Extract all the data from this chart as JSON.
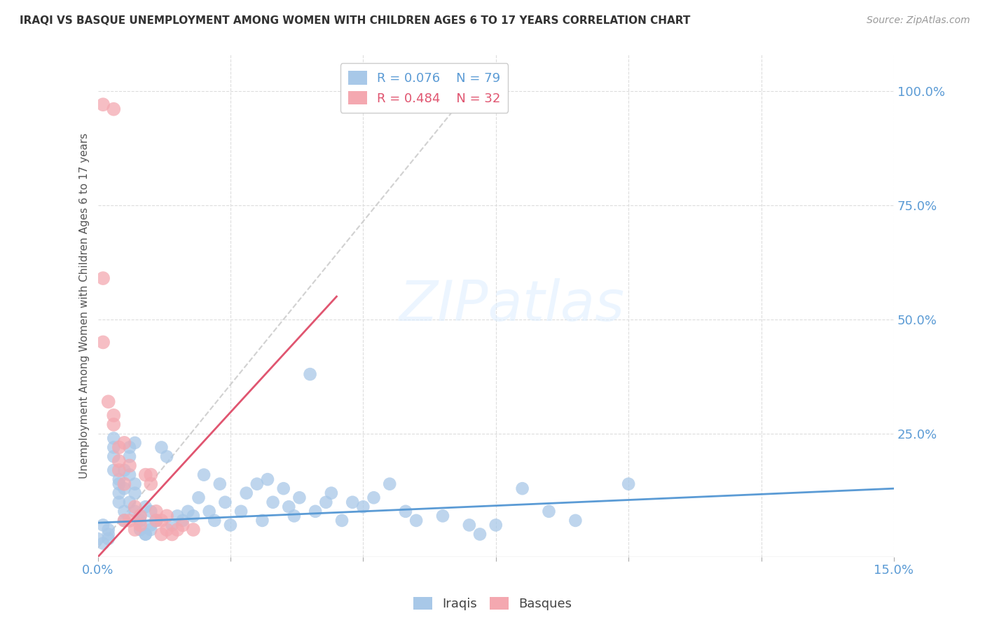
{
  "title": "IRAQI VS BASQUE UNEMPLOYMENT AMONG WOMEN WITH CHILDREN AGES 6 TO 17 YEARS CORRELATION CHART",
  "source": "Source: ZipAtlas.com",
  "ylabel": "Unemployment Among Women with Children Ages 6 to 17 years",
  "xlim": [
    0.0,
    0.15
  ],
  "ylim": [
    -0.02,
    1.08
  ],
  "watermark_text": "ZIPatlas",
  "legend_r1": "R = 0.076",
  "legend_n1": "N = 79",
  "legend_r2": "R = 0.484",
  "legend_n2": "N = 32",
  "iraqi_color": "#a8c8e8",
  "basque_color": "#f4a8b0",
  "trendline1_color": "#5b9bd5",
  "trendline2_color": "#e05570",
  "diag_color": "#cccccc",
  "background_color": "#ffffff",
  "grid_color": "#dddddd",
  "text_color": "#5b9bd5",
  "title_color": "#333333",
  "source_color": "#999999",
  "ylabel_color": "#555555",
  "legend_text1_color": "#5b9bd5",
  "legend_text2_color": "#e05570",
  "iraqi_points": [
    [
      0.0,
      0.02
    ],
    [
      0.001,
      0.01
    ],
    [
      0.001,
      0.05
    ],
    [
      0.002,
      0.03
    ],
    [
      0.002,
      0.04
    ],
    [
      0.002,
      0.02
    ],
    [
      0.003,
      0.22
    ],
    [
      0.003,
      0.2
    ],
    [
      0.003,
      0.24
    ],
    [
      0.003,
      0.17
    ],
    [
      0.004,
      0.12
    ],
    [
      0.004,
      0.15
    ],
    [
      0.004,
      0.14
    ],
    [
      0.004,
      0.1
    ],
    [
      0.005,
      0.13
    ],
    [
      0.005,
      0.08
    ],
    [
      0.005,
      0.06
    ],
    [
      0.005,
      0.17
    ],
    [
      0.006,
      0.16
    ],
    [
      0.006,
      0.22
    ],
    [
      0.006,
      0.2
    ],
    [
      0.006,
      0.1
    ],
    [
      0.007,
      0.08
    ],
    [
      0.007,
      0.23
    ],
    [
      0.007,
      0.14
    ],
    [
      0.007,
      0.12
    ],
    [
      0.008,
      0.06
    ],
    [
      0.008,
      0.04
    ],
    [
      0.008,
      0.07
    ],
    [
      0.009,
      0.03
    ],
    [
      0.009,
      0.09
    ],
    [
      0.009,
      0.03
    ],
    [
      0.01,
      0.05
    ],
    [
      0.01,
      0.04
    ],
    [
      0.01,
      0.08
    ],
    [
      0.011,
      0.06
    ],
    [
      0.012,
      0.22
    ],
    [
      0.013,
      0.2
    ],
    [
      0.014,
      0.05
    ],
    [
      0.015,
      0.07
    ],
    [
      0.016,
      0.06
    ],
    [
      0.017,
      0.08
    ],
    [
      0.018,
      0.07
    ],
    [
      0.019,
      0.11
    ],
    [
      0.02,
      0.16
    ],
    [
      0.021,
      0.08
    ],
    [
      0.022,
      0.06
    ],
    [
      0.023,
      0.14
    ],
    [
      0.024,
      0.1
    ],
    [
      0.025,
      0.05
    ],
    [
      0.027,
      0.08
    ],
    [
      0.028,
      0.12
    ],
    [
      0.03,
      0.14
    ],
    [
      0.031,
      0.06
    ],
    [
      0.032,
      0.15
    ],
    [
      0.033,
      0.1
    ],
    [
      0.035,
      0.13
    ],
    [
      0.036,
      0.09
    ],
    [
      0.037,
      0.07
    ],
    [
      0.038,
      0.11
    ],
    [
      0.04,
      0.38
    ],
    [
      0.041,
      0.08
    ],
    [
      0.043,
      0.1
    ],
    [
      0.044,
      0.12
    ],
    [
      0.046,
      0.06
    ],
    [
      0.048,
      0.1
    ],
    [
      0.05,
      0.09
    ],
    [
      0.052,
      0.11
    ],
    [
      0.055,
      0.14
    ],
    [
      0.058,
      0.08
    ],
    [
      0.06,
      0.06
    ],
    [
      0.065,
      0.07
    ],
    [
      0.07,
      0.05
    ],
    [
      0.072,
      0.03
    ],
    [
      0.075,
      0.05
    ],
    [
      0.08,
      0.13
    ],
    [
      0.085,
      0.08
    ],
    [
      0.09,
      0.06
    ],
    [
      0.1,
      0.14
    ]
  ],
  "basque_points": [
    [
      0.001,
      0.97
    ],
    [
      0.003,
      0.96
    ],
    [
      0.001,
      0.59
    ],
    [
      0.001,
      0.45
    ],
    [
      0.002,
      0.32
    ],
    [
      0.003,
      0.29
    ],
    [
      0.003,
      0.27
    ],
    [
      0.004,
      0.19
    ],
    [
      0.004,
      0.17
    ],
    [
      0.004,
      0.22
    ],
    [
      0.005,
      0.14
    ],
    [
      0.005,
      0.23
    ],
    [
      0.005,
      0.06
    ],
    [
      0.006,
      0.18
    ],
    [
      0.006,
      0.06
    ],
    [
      0.007,
      0.04
    ],
    [
      0.007,
      0.09
    ],
    [
      0.008,
      0.07
    ],
    [
      0.008,
      0.05
    ],
    [
      0.009,
      0.16
    ],
    [
      0.01,
      0.16
    ],
    [
      0.01,
      0.14
    ],
    [
      0.011,
      0.08
    ],
    [
      0.011,
      0.06
    ],
    [
      0.012,
      0.03
    ],
    [
      0.012,
      0.06
    ],
    [
      0.013,
      0.07
    ],
    [
      0.013,
      0.04
    ],
    [
      0.014,
      0.03
    ],
    [
      0.015,
      0.04
    ],
    [
      0.016,
      0.05
    ],
    [
      0.018,
      0.04
    ]
  ],
  "trendline1_x": [
    0.0,
    0.15
  ],
  "trendline1_y": [
    0.055,
    0.13
  ],
  "trendline2_x": [
    0.0,
    0.045
  ],
  "trendline2_y": [
    -0.02,
    0.55
  ]
}
